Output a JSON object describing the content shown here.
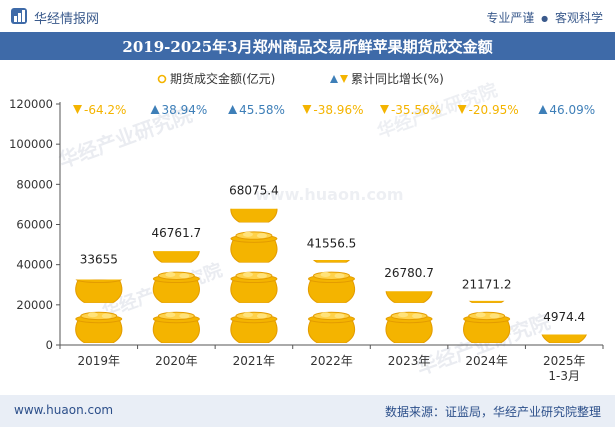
{
  "header": {
    "site_name": "华经情报网",
    "tagline_left": "专业严谨",
    "tagline_sep": "●",
    "tagline_right": "客观科学"
  },
  "title": "2019-2025年3月郑州商品交易所鲜苹果期货成交金额",
  "footer": {
    "url": "www.huaon.com",
    "source": "数据来源：证监局，华经产业研究院整理"
  },
  "colors": {
    "coin": "#f4b400",
    "coin_dark": "#e39c00",
    "up": "#3e7fb8",
    "down": "#f4b400",
    "header_band": "#3e6aa8"
  },
  "chart_data": {
    "type": "bar",
    "categories": [
      "2019年",
      "2020年",
      "2021年",
      "2022年",
      "2023年",
      "2024年",
      "2025年\n1-3月"
    ],
    "series": [
      {
        "name": "期货成交金额(亿元)",
        "values": [
          33655,
          46761.7,
          68075.4,
          41556.5,
          26780.7,
          21171.2,
          4974.4
        ]
      },
      {
        "name": "累计同比增长(%)",
        "values": [
          -64.2,
          38.94,
          45.58,
          -38.96,
          -35.56,
          -20.95,
          46.09
        ]
      }
    ],
    "value_labels": [
      "33655",
      "46761.7",
      "68075.4",
      "41556.5",
      "26780.7",
      "21171.2",
      "4974.4"
    ],
    "growth_labels": [
      "-64.2%",
      "38.94%",
      "45.58%",
      "-38.96%",
      "-35.56%",
      "-20.95%",
      "46.09%"
    ],
    "y_ticks": [
      "0",
      "20000",
      "40000",
      "60000",
      "80000",
      "100000",
      "120000"
    ],
    "ylim": [
      0,
      120000
    ],
    "legend": [
      "期货成交金额(亿元)",
      "累计同比增长(%)"
    ],
    "legend_position": "top-center",
    "grid": false
  }
}
